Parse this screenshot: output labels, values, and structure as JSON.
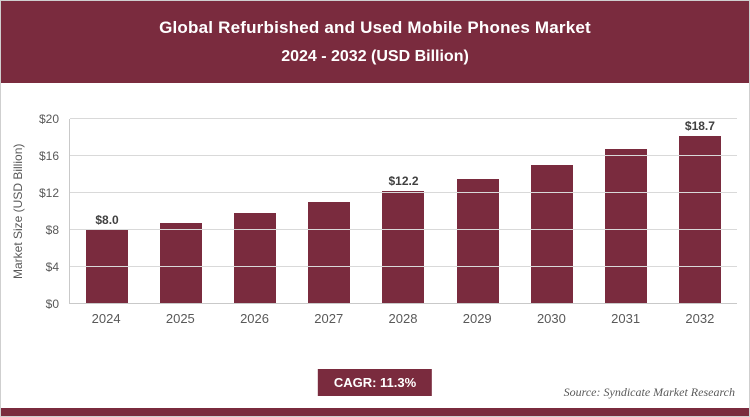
{
  "header": {
    "title_line1": "Global Refurbished and Used Mobile Phones Market",
    "title_line2": "2024 - 2032 (USD Billion)"
  },
  "footer": {
    "cagr_label": "CAGR: 11.3%",
    "source": "Source: Syndicate Market Research"
  },
  "colors": {
    "maroon": "#7a2b3e",
    "gridline": "#d9d9d9"
  },
  "chart_data": {
    "type": "bar",
    "title": "Global Refurbished and Used Mobile Phones Market 2024 - 2032 (USD Billion)",
    "categories": [
      "2024",
      "2025",
      "2026",
      "2027",
      "2028",
      "2029",
      "2030",
      "2031",
      "2032"
    ],
    "values": [
      8.0,
      8.8,
      9.8,
      11.0,
      12.2,
      13.5,
      15.0,
      16.8,
      18.7
    ],
    "bar_labels": [
      "$8.0",
      "",
      "",
      "",
      "$12.2",
      "",
      "",
      "",
      "$18.7"
    ],
    "xlabel": "",
    "ylabel": "Market Size (USD Billion)",
    "ylim": [
      0,
      20
    ],
    "yticks": [
      0,
      4,
      8,
      12,
      16,
      20
    ],
    "ytick_labels": [
      "$0",
      "$4",
      "$8",
      "$12",
      "$16",
      "$20"
    ],
    "grid": "horizontal",
    "legend": "none",
    "bar_color": "#7a2b3e"
  }
}
